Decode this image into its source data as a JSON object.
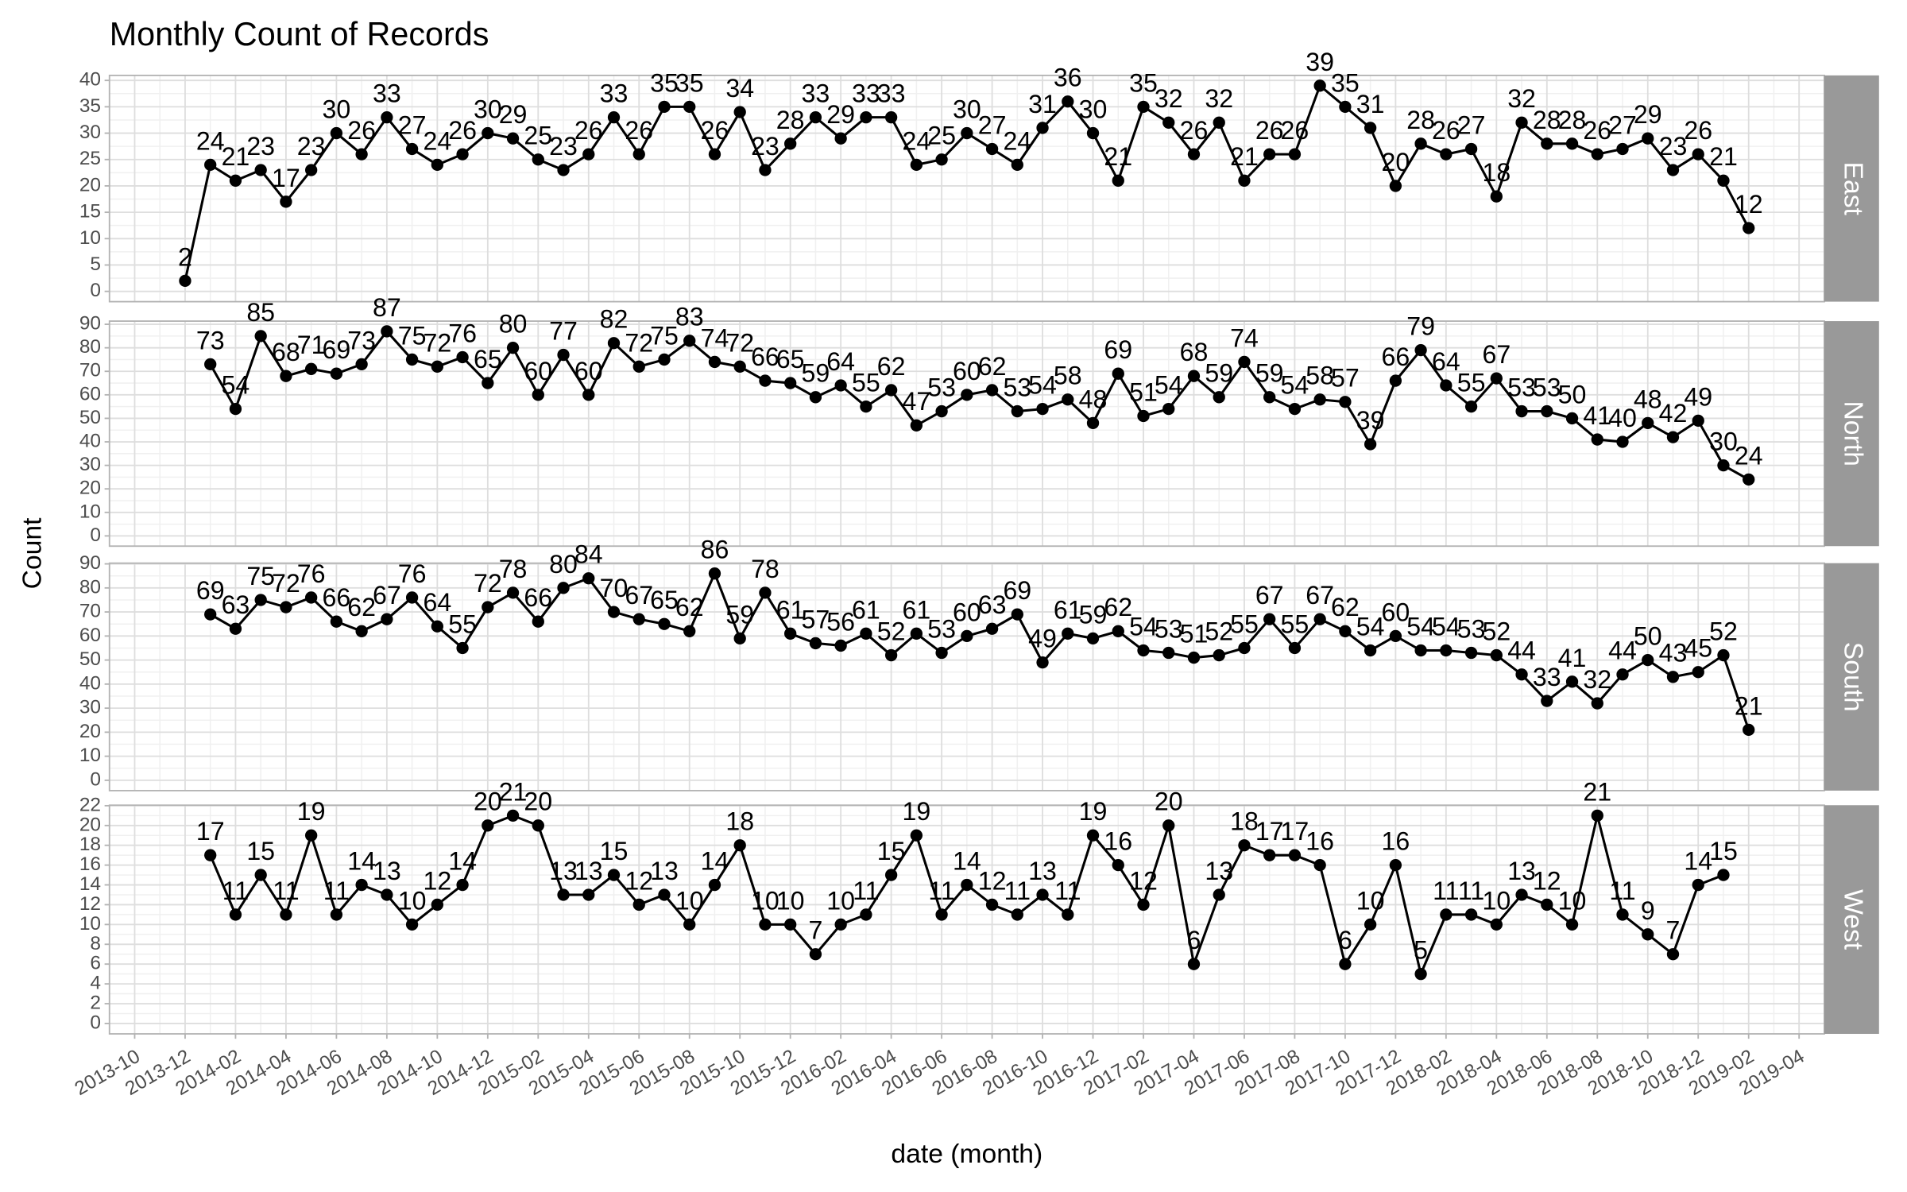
{
  "chart_data": {
    "type": "line",
    "title": "Monthly Count of Records",
    "x_label": "date (month)",
    "y_label": "Count",
    "x": [
      "2013-12",
      "2014-01",
      "2014-02",
      "2014-03",
      "2014-04",
      "2014-05",
      "2014-06",
      "2014-07",
      "2014-08",
      "2014-09",
      "2014-10",
      "2014-11",
      "2014-12",
      "2015-01",
      "2015-02",
      "2015-03",
      "2015-04",
      "2015-05",
      "2015-06",
      "2015-07",
      "2015-08",
      "2015-09",
      "2015-10",
      "2015-11",
      "2015-12",
      "2016-01",
      "2016-02",
      "2016-03",
      "2016-04",
      "2016-05",
      "2016-06",
      "2016-07",
      "2016-08",
      "2016-09",
      "2016-10",
      "2016-11",
      "2016-12",
      "2017-01",
      "2017-02",
      "2017-03",
      "2017-04",
      "2017-05",
      "2017-06",
      "2017-07",
      "2017-08",
      "2017-09",
      "2017-10",
      "2017-11",
      "2017-12",
      "2018-01",
      "2018-02",
      "2018-03",
      "2018-04",
      "2018-05",
      "2018-06",
      "2018-07",
      "2018-08",
      "2018-09",
      "2018-10",
      "2018-11",
      "2018-12",
      "2019-01",
      "2019-02"
    ],
    "xlim": [
      "2013-09",
      "2019-05"
    ],
    "xticks": [
      "2013-10",
      "2013-12",
      "2014-02",
      "2014-04",
      "2014-06",
      "2014-08",
      "2014-10",
      "2014-12",
      "2015-02",
      "2015-04",
      "2015-06",
      "2015-08",
      "2015-10",
      "2015-12",
      "2016-02",
      "2016-04",
      "2016-06",
      "2016-08",
      "2016-10",
      "2016-12",
      "2017-02",
      "2017-04",
      "2017-06",
      "2017-08",
      "2017-10",
      "2017-12",
      "2018-02",
      "2018-04",
      "2018-06",
      "2018-08",
      "2018-10",
      "2018-12",
      "2019-02",
      "2019-04"
    ],
    "grid": true,
    "series": [
      {
        "name": "East",
        "color": "#000000",
        "ylim": [
          -1.95,
          40.95
        ],
        "yticks": [
          0,
          5,
          10,
          15,
          20,
          25,
          30,
          35,
          40
        ],
        "values": [
          2,
          24,
          21,
          23,
          17,
          23,
          30,
          26,
          33,
          27,
          24,
          26,
          30,
          29,
          25,
          23,
          26,
          33,
          26,
          35,
          35,
          26,
          34,
          23,
          28,
          33,
          29,
          33,
          33,
          24,
          25,
          30,
          27,
          24,
          31,
          36,
          30,
          21,
          35,
          32,
          26,
          32,
          21,
          26,
          26,
          39,
          35,
          31,
          20,
          28,
          26,
          27,
          18,
          32,
          28,
          28,
          26,
          27,
          29,
          23,
          26,
          21,
          12
        ]
      },
      {
        "name": "North",
        "color": "#000000",
        "ylim": [
          -4.35,
          91.35
        ],
        "yticks": [
          0,
          10,
          20,
          30,
          40,
          50,
          60,
          70,
          80,
          90
        ],
        "values": [
          null,
          73,
          54,
          85,
          68,
          71,
          69,
          73,
          87,
          75,
          72,
          76,
          65,
          80,
          60,
          77,
          60,
          82,
          72,
          75,
          83,
          74,
          72,
          66,
          65,
          59,
          64,
          55,
          62,
          47,
          53,
          60,
          62,
          53,
          54,
          58,
          48,
          69,
          51,
          54,
          68,
          59,
          74,
          59,
          54,
          58,
          57,
          39,
          66,
          79,
          64,
          55,
          67,
          53,
          53,
          50,
          41,
          40,
          48,
          42,
          49,
          30,
          24
        ]
      },
      {
        "name": "South",
        "color": "#000000",
        "ylim": [
          -4.3,
          90.3
        ],
        "yticks": [
          0,
          10,
          20,
          30,
          40,
          50,
          60,
          70,
          80,
          90
        ],
        "values": [
          null,
          69,
          63,
          75,
          72,
          76,
          66,
          62,
          67,
          76,
          64,
          55,
          72,
          78,
          66,
          80,
          84,
          70,
          67,
          65,
          62,
          86,
          59,
          78,
          61,
          57,
          56,
          61,
          52,
          61,
          53,
          60,
          63,
          69,
          49,
          61,
          59,
          62,
          54,
          53,
          51,
          52,
          55,
          67,
          55,
          67,
          62,
          54,
          60,
          54,
          54,
          53,
          52,
          44,
          33,
          41,
          32,
          44,
          50,
          43,
          45,
          52,
          21
        ]
      },
      {
        "name": "West",
        "color": "#000000",
        "ylim": [
          -1.05,
          22.05
        ],
        "yticks": [
          0,
          2,
          4,
          6,
          8,
          10,
          12,
          14,
          16,
          18,
          20,
          22
        ],
        "values": [
          null,
          17,
          11,
          15,
          11,
          19,
          11,
          14,
          13,
          10,
          12,
          14,
          20,
          21,
          20,
          13,
          13,
          15,
          12,
          13,
          10,
          14,
          18,
          10,
          10,
          7,
          10,
          11,
          15,
          19,
          11,
          14,
          12,
          11,
          13,
          11,
          19,
          16,
          12,
          20,
          6,
          13,
          18,
          17,
          17,
          16,
          6,
          10,
          16,
          5,
          11,
          11,
          10,
          13,
          12,
          10,
          21,
          11,
          9,
          7,
          14,
          15,
          null
        ]
      }
    ]
  }
}
